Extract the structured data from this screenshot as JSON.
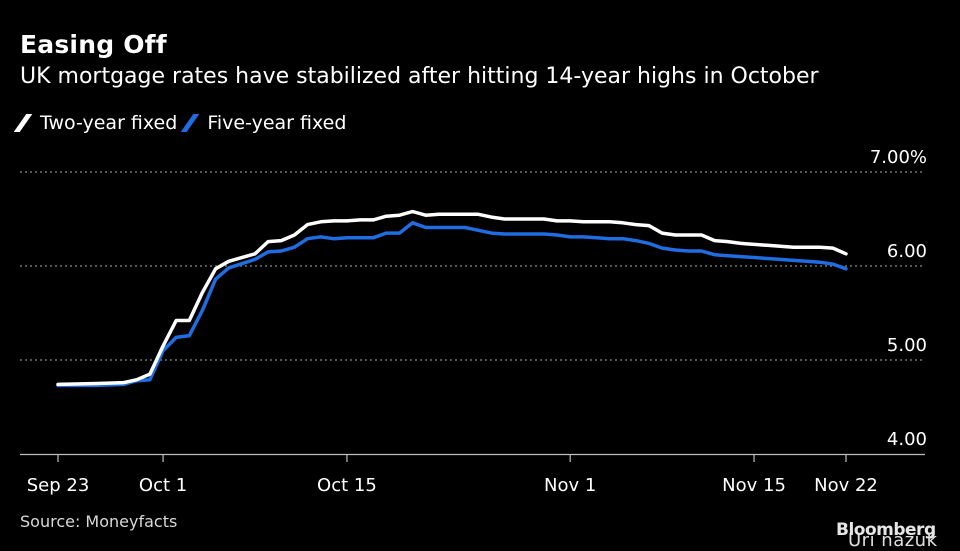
{
  "title": "Easing Off",
  "subtitle": "UK mortgage rates have stabilized after hitting 14-year highs in October",
  "source": "Source: Moneyfacts",
  "brand": "Bloomberg",
  "watermark": "Uri nazuk",
  "colors": {
    "background": "#000000",
    "two_year": "#ffffff",
    "five_year": "#1f6de0",
    "grid": "#8a8a8a"
  },
  "chart_data": {
    "type": "line",
    "title": "Easing Off",
    "subtitle": "UK mortgage rates have stabilized after hitting 14-year highs in October",
    "xlabel": "",
    "ylabel": "",
    "x_range": [
      "2023-09-23",
      "2023-11-22"
    ],
    "ylim": [
      4.0,
      7.0
    ],
    "y_ticks": [
      {
        "value": 7.0,
        "label": "7.00%"
      },
      {
        "value": 6.0,
        "label": "6.00"
      },
      {
        "value": 5.0,
        "label": "5.00"
      },
      {
        "value": 4.0,
        "label": "4.00"
      }
    ],
    "x_ticks": [
      {
        "date": "2023-09-23",
        "label": "Sep 23"
      },
      {
        "date": "2023-10-01",
        "label": "Oct 1"
      },
      {
        "date": "2023-10-15",
        "label": "Oct 15"
      },
      {
        "date": "2023-11-01",
        "label": "Nov 1"
      },
      {
        "date": "2023-11-15",
        "label": "Nov 15"
      },
      {
        "date": "2023-11-22",
        "label": "Nov 22"
      }
    ],
    "grid": true,
    "legend_position": "top-left",
    "series": [
      {
        "name": "Two-year fixed",
        "color": "#ffffff",
        "points": [
          [
            "2023-09-23",
            4.74
          ],
          [
            "2023-09-26",
            4.75
          ],
          [
            "2023-09-28",
            4.76
          ],
          [
            "2023-09-29",
            4.79
          ],
          [
            "2023-09-30",
            4.85
          ],
          [
            "2023-10-01",
            5.15
          ],
          [
            "2023-10-02",
            5.42
          ],
          [
            "2023-10-03",
            5.42
          ],
          [
            "2023-10-04",
            5.72
          ],
          [
            "2023-10-05",
            5.97
          ],
          [
            "2023-10-06",
            6.05
          ],
          [
            "2023-10-08",
            6.13
          ],
          [
            "2023-10-09",
            6.26
          ],
          [
            "2023-10-10",
            6.27
          ],
          [
            "2023-10-11",
            6.33
          ],
          [
            "2023-10-12",
            6.44
          ],
          [
            "2023-10-13",
            6.47
          ],
          [
            "2023-10-14",
            6.48
          ],
          [
            "2023-10-15",
            6.48
          ],
          [
            "2023-10-16",
            6.49
          ],
          [
            "2023-10-17",
            6.49
          ],
          [
            "2023-10-18",
            6.53
          ],
          [
            "2023-10-19",
            6.54
          ],
          [
            "2023-10-20",
            6.58
          ],
          [
            "2023-10-21",
            6.54
          ],
          [
            "2023-10-22",
            6.55
          ],
          [
            "2023-10-24",
            6.55
          ],
          [
            "2023-10-25",
            6.55
          ],
          [
            "2023-10-26",
            6.52
          ],
          [
            "2023-10-27",
            6.5
          ],
          [
            "2023-10-29",
            6.5
          ],
          [
            "2023-10-30",
            6.5
          ],
          [
            "2023-10-31",
            6.48
          ],
          [
            "2023-11-01",
            6.48
          ],
          [
            "2023-11-02",
            6.47
          ],
          [
            "2023-11-03",
            6.47
          ],
          [
            "2023-11-04",
            6.47
          ],
          [
            "2023-11-05",
            6.46
          ],
          [
            "2023-11-06",
            6.44
          ],
          [
            "2023-11-07",
            6.43
          ],
          [
            "2023-11-08",
            6.35
          ],
          [
            "2023-11-09",
            6.33
          ],
          [
            "2023-11-10",
            6.33
          ],
          [
            "2023-11-11",
            6.33
          ],
          [
            "2023-11-12",
            6.27
          ],
          [
            "2023-11-13",
            6.26
          ],
          [
            "2023-11-14",
            6.24
          ],
          [
            "2023-11-15",
            6.23
          ],
          [
            "2023-11-16",
            6.22
          ],
          [
            "2023-11-17",
            6.21
          ],
          [
            "2023-11-18",
            6.2
          ],
          [
            "2023-11-19",
            6.2
          ],
          [
            "2023-11-20",
            6.2
          ],
          [
            "2023-11-21",
            6.19
          ],
          [
            "2023-11-22",
            6.13
          ]
        ]
      },
      {
        "name": "Five-year fixed",
        "color": "#1f6de0",
        "points": [
          [
            "2023-09-23",
            4.73
          ],
          [
            "2023-09-26",
            4.73
          ],
          [
            "2023-09-28",
            4.74
          ],
          [
            "2023-09-29",
            4.78
          ],
          [
            "2023-09-30",
            4.79
          ],
          [
            "2023-10-01",
            5.1
          ],
          [
            "2023-10-02",
            5.24
          ],
          [
            "2023-10-03",
            5.26
          ],
          [
            "2023-10-04",
            5.53
          ],
          [
            "2023-10-05",
            5.86
          ],
          [
            "2023-10-06",
            5.98
          ],
          [
            "2023-10-08",
            6.07
          ],
          [
            "2023-10-09",
            6.15
          ],
          [
            "2023-10-10",
            6.16
          ],
          [
            "2023-10-11",
            6.2
          ],
          [
            "2023-10-12",
            6.29
          ],
          [
            "2023-10-13",
            6.31
          ],
          [
            "2023-10-14",
            6.29
          ],
          [
            "2023-10-15",
            6.3
          ],
          [
            "2023-10-16",
            6.3
          ],
          [
            "2023-10-17",
            6.3
          ],
          [
            "2023-10-18",
            6.35
          ],
          [
            "2023-10-19",
            6.35
          ],
          [
            "2023-10-20",
            6.46
          ],
          [
            "2023-10-21",
            6.41
          ],
          [
            "2023-10-22",
            6.41
          ],
          [
            "2023-10-24",
            6.41
          ],
          [
            "2023-10-25",
            6.38
          ],
          [
            "2023-10-26",
            6.35
          ],
          [
            "2023-10-27",
            6.34
          ],
          [
            "2023-10-29",
            6.34
          ],
          [
            "2023-10-30",
            6.34
          ],
          [
            "2023-10-31",
            6.33
          ],
          [
            "2023-11-01",
            6.31
          ],
          [
            "2023-11-02",
            6.31
          ],
          [
            "2023-11-03",
            6.3
          ],
          [
            "2023-11-04",
            6.29
          ],
          [
            "2023-11-05",
            6.29
          ],
          [
            "2023-11-06",
            6.27
          ],
          [
            "2023-11-07",
            6.24
          ],
          [
            "2023-11-08",
            6.19
          ],
          [
            "2023-11-09",
            6.17
          ],
          [
            "2023-11-10",
            6.16
          ],
          [
            "2023-11-11",
            6.16
          ],
          [
            "2023-11-12",
            6.12
          ],
          [
            "2023-11-13",
            6.11
          ],
          [
            "2023-11-14",
            6.1
          ],
          [
            "2023-11-15",
            6.09
          ],
          [
            "2023-11-16",
            6.08
          ],
          [
            "2023-11-17",
            6.07
          ],
          [
            "2023-11-18",
            6.06
          ],
          [
            "2023-11-19",
            6.05
          ],
          [
            "2023-11-20",
            6.04
          ],
          [
            "2023-11-21",
            6.02
          ],
          [
            "2023-11-22",
            5.97
          ]
        ]
      }
    ]
  }
}
